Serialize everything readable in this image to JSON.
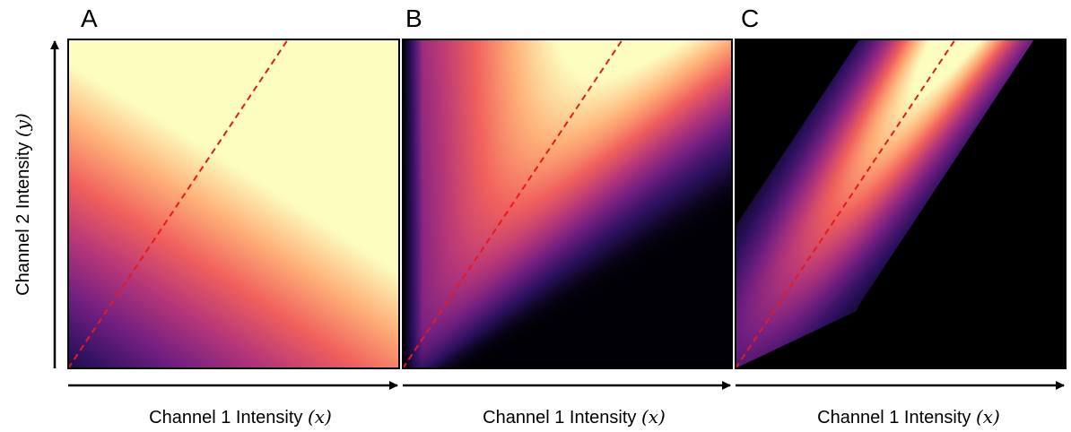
{
  "colors": {
    "diagonal": "#e8191c",
    "frame": "#000000",
    "colormap": [
      "#000004",
      "#2c115f",
      "#721f81",
      "#b73779",
      "#f1605d",
      "#feb078",
      "#fcfdbf"
    ]
  },
  "y_axis_label": {
    "prefix": "Channel 2 Intensity ",
    "var": "(y)"
  },
  "panels": [
    {
      "letter": "A",
      "xlabel_prefix": "Channel 1 Intensity ",
      "xlabel_var": "(x)"
    },
    {
      "letter": "B",
      "xlabel_prefix": "Channel 1 Intensity ",
      "xlabel_var": "(x)"
    },
    {
      "letter": "C",
      "xlabel_prefix": "Channel 1 Intensity ",
      "xlabel_var": "(x)"
    }
  ],
  "chart_data": [
    {
      "type": "heatmap",
      "panel": "A",
      "colormap": "magma",
      "field": "intensity rises toward high x and high y",
      "reference_line": "y = x (red dashed)"
    },
    {
      "type": "heatmap",
      "panel": "B",
      "colormap": "magma",
      "field": "intensity peaks near the diagonal, fading away from it",
      "reference_line": "y = x (red dashed)"
    },
    {
      "type": "heatmap",
      "panel": "C",
      "colormap": "magma",
      "field": "intensity shown only in a band around the diagonal, black outside",
      "reference_line": "y = x (red dashed)"
    }
  ]
}
